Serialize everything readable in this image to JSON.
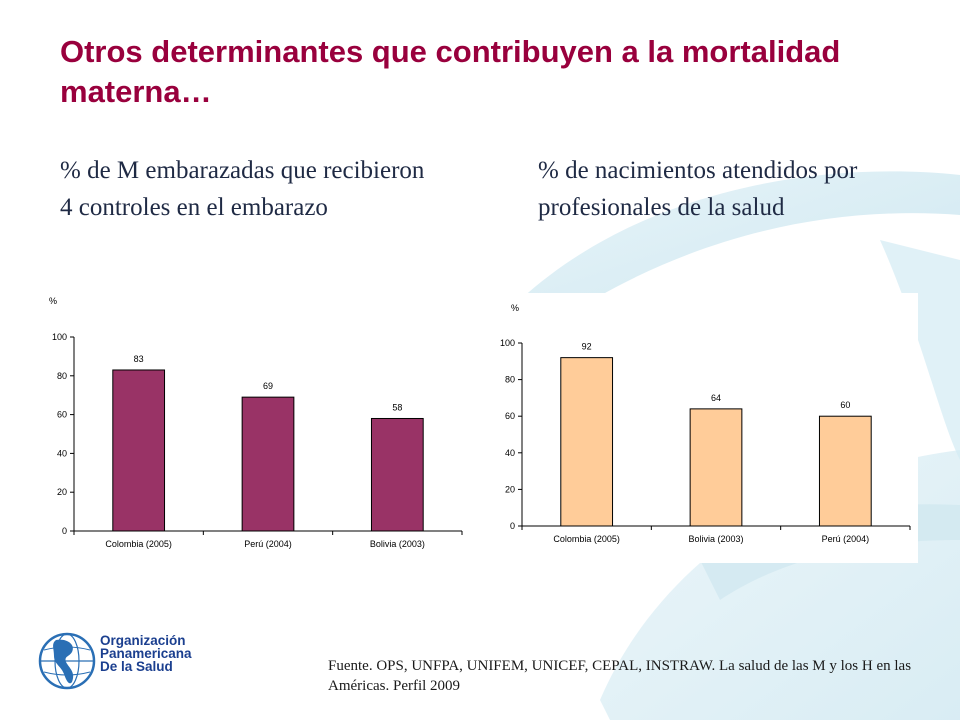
{
  "slide": {
    "title": "Otros determinantes que contribuyen a la mortalidad materna…",
    "source": "Fuente. OPS, UNFPA, UNIFEM, UNICEF, CEPAL, INSTRAW. La salud de las M y los H en las Américas. Perfil 2009"
  },
  "logo": {
    "line1": "Organización",
    "line2": "Panamericana",
    "line3": "De la Salud"
  },
  "colors": {
    "title": "#99003d",
    "bar_left": "#993366",
    "bar_right": "#ffcc99"
  },
  "chart_data": [
    {
      "type": "bar",
      "title": "%  de M embarazadas que recibieron 4 controles en el embarazo",
      "ylabel": "%",
      "categories": [
        "Colombia (2005)",
        "Perú (2004)",
        "Bolivia (2003)"
      ],
      "values": [
        83,
        69,
        58
      ],
      "data_labels": [
        "83",
        "69",
        "58"
      ],
      "ylim": [
        0,
        100
      ],
      "yticks": [
        0,
        20,
        40,
        60,
        80,
        100
      ],
      "grid": false,
      "legend": "none"
    },
    {
      "type": "bar",
      "title": "% de nacimientos atendidos por profesionales de la salud",
      "ylabel": "%",
      "categories": [
        "Colombia (2005)",
        "Bolivia (2003)",
        "Perú (2004)"
      ],
      "values": [
        92,
        64,
        60
      ],
      "data_labels": [
        "92",
        "64",
        "60"
      ],
      "ylim": [
        0,
        100
      ],
      "yticks": [
        0,
        20,
        40,
        60,
        80,
        100
      ],
      "grid": false,
      "legend": "none"
    }
  ]
}
